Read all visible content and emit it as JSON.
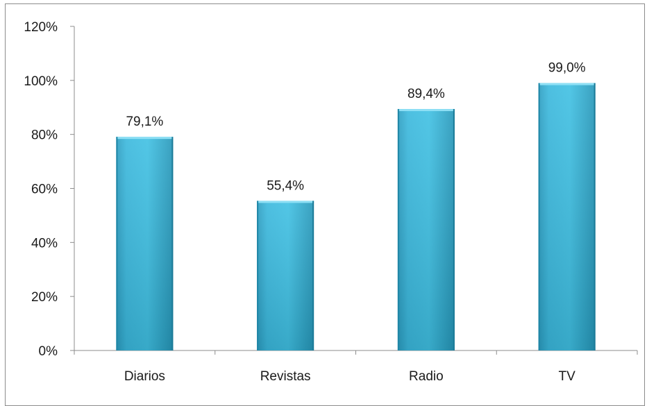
{
  "chart_data": {
    "type": "bar",
    "categories": [
      "Diarios",
      "Revistas",
      "Radio",
      "TV"
    ],
    "values": [
      79.1,
      55.4,
      89.4,
      99.0
    ],
    "data_labels": [
      "79,1%",
      "55,4%",
      "89,4%",
      "99,0%"
    ],
    "y_ticks": [
      "0%",
      "20%",
      "40%",
      "60%",
      "80%",
      "100%",
      "120%"
    ],
    "ylim": [
      0,
      120
    ],
    "title": "",
    "xlabel": "",
    "ylabel": "",
    "grid": false,
    "legend": "none",
    "bar_color": "#2fb0d4",
    "bar_highlight": "#4cc8e8",
    "bar_shadow": "#2186a3"
  }
}
